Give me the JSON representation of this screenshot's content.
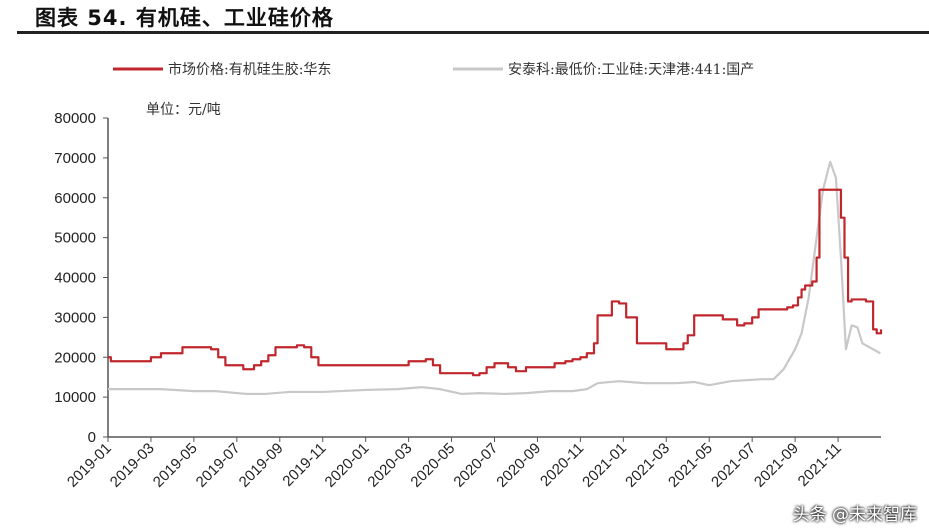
{
  "title": "图表 54. 有机硅、工业硅价格",
  "watermark": "头条 @未来智库",
  "chart_data": {
    "type": "line",
    "title": "图表 54. 有机硅、工业硅价格",
    "unit_label": "单位：元/吨",
    "ylim": [
      0,
      80000
    ],
    "yticks": [
      "0",
      "10000",
      "20000",
      "30000",
      "40000",
      "50000",
      "60000",
      "70000",
      "80000"
    ],
    "xlim": [
      "2019-01",
      "2021-12"
    ],
    "xticks": [
      "2019-01",
      "2019-03",
      "2019-05",
      "2019-07",
      "2019-09",
      "2019-11",
      "2020-01",
      "2020-03",
      "2020-05",
      "2020-07",
      "2020-09",
      "2020-11",
      "2021-01",
      "2021-03",
      "2021-05",
      "2021-07",
      "2021-09",
      "2021-11"
    ],
    "legend": "top",
    "grid": false,
    "series": [
      {
        "name": "市场价格:有机硅生胶:华东",
        "color": "#c0272d",
        "step": true,
        "x": [
          "2019-01-01",
          "2019-01-05",
          "2019-02-15",
          "2019-03-01",
          "2019-03-15",
          "2019-04-01",
          "2019-04-15",
          "2019-05-10",
          "2019-05-25",
          "2019-06-05",
          "2019-06-15",
          "2019-07-10",
          "2019-07-25",
          "2019-08-05",
          "2019-08-15",
          "2019-08-25",
          "2019-09-25",
          "2019-10-05",
          "2019-10-15",
          "2019-10-25",
          "2020-01-01",
          "2020-03-01",
          "2020-03-25",
          "2020-04-05",
          "2020-04-15",
          "2020-05-25",
          "2020-06-01",
          "2020-06-10",
          "2020-06-20",
          "2020-07-01",
          "2020-07-20",
          "2020-08-01",
          "2020-08-15",
          "2020-09-10",
          "2020-09-25",
          "2020-10-10",
          "2020-10-20",
          "2020-11-01",
          "2020-11-10",
          "2020-11-20",
          "2020-11-25",
          "2020-12-15",
          "2020-12-25",
          "2021-01-05",
          "2021-01-20",
          "2021-03-01",
          "2021-03-15",
          "2021-03-25",
          "2021-04-01",
          "2021-04-10",
          "2021-05-10",
          "2021-05-20",
          "2021-06-10",
          "2021-06-20",
          "2021-07-01",
          "2021-07-10",
          "2021-08-20",
          "2021-08-28",
          "2021-09-05",
          "2021-09-10",
          "2021-09-15",
          "2021-09-25",
          "2021-10-01",
          "2021-10-05",
          "2021-11-01",
          "2021-11-05",
          "2021-11-10",
          "2021-11-15",
          "2021-11-20",
          "2021-12-05",
          "2021-12-10",
          "2021-12-20",
          "2021-12-25",
          "2021-12-31"
        ],
        "y": [
          20000,
          19000,
          19000,
          20000,
          21000,
          21000,
          22500,
          22500,
          22000,
          20000,
          18000,
          17000,
          18000,
          19000,
          20500,
          22500,
          23000,
          22500,
          20000,
          18000,
          18000,
          19000,
          19500,
          18000,
          16000,
          16000,
          15500,
          16000,
          17500,
          18500,
          17500,
          16500,
          17500,
          17500,
          18500,
          19000,
          19500,
          20000,
          21000,
          23500,
          30500,
          34000,
          33500,
          30000,
          23500,
          22000,
          22000,
          23500,
          25500,
          30500,
          30500,
          29500,
          28000,
          28500,
          30000,
          32000,
          32500,
          33000,
          35000,
          37000,
          38000,
          39000,
          45000,
          62000,
          62000,
          55000,
          45000,
          34000,
          34500,
          34500,
          34000,
          27000,
          26000,
          27000
        ]
      },
      {
        "name": "安泰科:最低价:工业硅:天津港:441:国产",
        "color": "#c8c8c8",
        "step": false,
        "x": [
          "2019-01-01",
          "2019-03-15",
          "2019-05-01",
          "2019-06-01",
          "2019-07-15",
          "2019-08-10",
          "2019-09-15",
          "2019-11-01",
          "2020-01-01",
          "2020-02-15",
          "2020-03-20",
          "2020-04-15",
          "2020-05-15",
          "2020-06-10",
          "2020-07-15",
          "2020-08-15",
          "2020-09-20",
          "2020-10-20",
          "2020-11-10",
          "2020-11-25",
          "2020-12-25",
          "2021-02-01",
          "2021-03-15",
          "2021-04-10",
          "2021-05-01",
          "2021-06-01",
          "2021-07-15",
          "2021-08-01",
          "2021-08-15",
          "2021-09-01",
          "2021-09-10",
          "2021-09-20",
          "2021-10-01",
          "2021-10-10",
          "2021-10-20",
          "2021-10-28",
          "2021-11-05",
          "2021-11-12",
          "2021-11-20",
          "2021-11-28",
          "2021-12-05",
          "2021-12-15",
          "2021-12-30"
        ],
        "y": [
          12000,
          12000,
          11500,
          11500,
          10800,
          10800,
          11300,
          11300,
          11800,
          12000,
          12500,
          12000,
          10800,
          11000,
          10800,
          11000,
          11500,
          11500,
          12000,
          13500,
          14000,
          13500,
          13500,
          13800,
          13000,
          14000,
          14500,
          14500,
          17000,
          22000,
          26000,
          35000,
          50000,
          62000,
          69000,
          65000,
          45000,
          22000,
          28000,
          27500,
          23500,
          22500,
          21000
        ]
      }
    ]
  }
}
